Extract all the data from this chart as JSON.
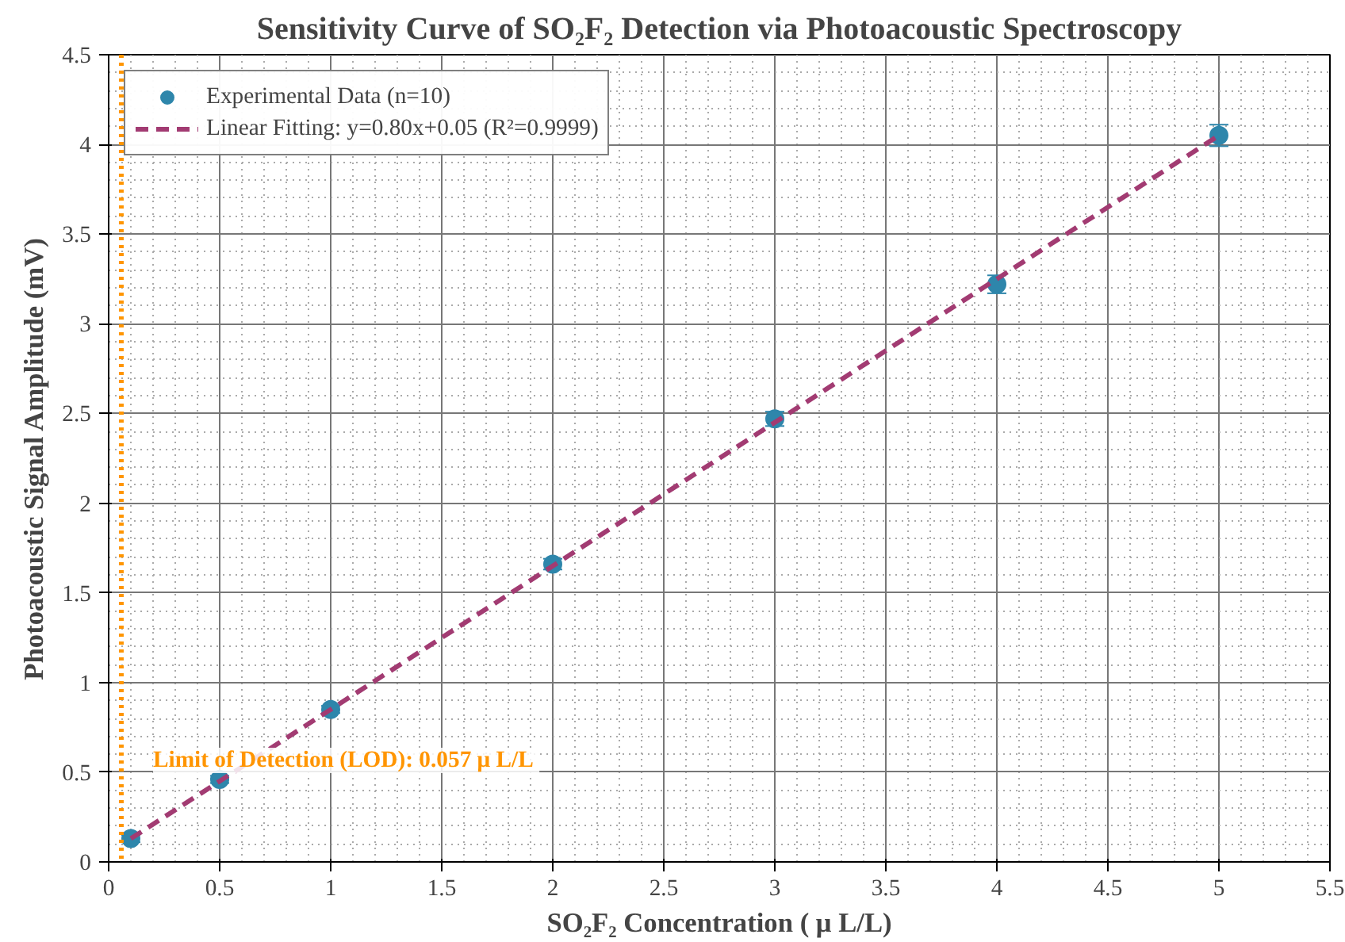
{
  "chart_data": {
    "type": "scatter",
    "title": "Sensitivity Curve of SO₂F₂ Detection via Photoacoustic Spectroscopy",
    "xlabel": "SO₂F₂ Concentration ( μ L/L)",
    "ylabel": "Photoacoustic Signal Amplitude (mV)",
    "xlim": [
      0,
      5.5
    ],
    "xticks": [
      0,
      0.5,
      1,
      1.5,
      2,
      2.5,
      3,
      3.5,
      4,
      4.5,
      5,
      5.5
    ],
    "ylim": [
      0,
      4.5
    ],
    "yticks": [
      0,
      0.5,
      1,
      1.5,
      2,
      2.5,
      3,
      3.5,
      4,
      4.5
    ],
    "grid": true,
    "legend": "top left",
    "series": [
      {
        "name": "Experimental Data (n=10)",
        "marker": "circle",
        "color": "#2e86ab",
        "x": [
          0.1,
          0.5,
          1,
          2,
          3,
          4,
          5
        ],
        "values": [
          0.13,
          0.46,
          0.85,
          1.66,
          2.47,
          3.22,
          4.05
        ],
        "errors": [
          0.02,
          0.02,
          0.02,
          0.03,
          0.04,
          0.05,
          0.06
        ]
      },
      {
        "name": "Linear Fitting: y=0.80x+0.05 (R²=0.9999)",
        "type": "line",
        "line_style": "dashed",
        "color": "#a23b72",
        "x": [
          0.1,
          5
        ],
        "values": [
          0.13,
          4.05
        ]
      }
    ],
    "ref_lines": [
      {
        "axis": "x",
        "value": 0.057,
        "label": "Limit of Detection (LOD): 0.057  μ L/L",
        "color": "#ff9500",
        "line_style": "dotted"
      }
    ]
  }
}
